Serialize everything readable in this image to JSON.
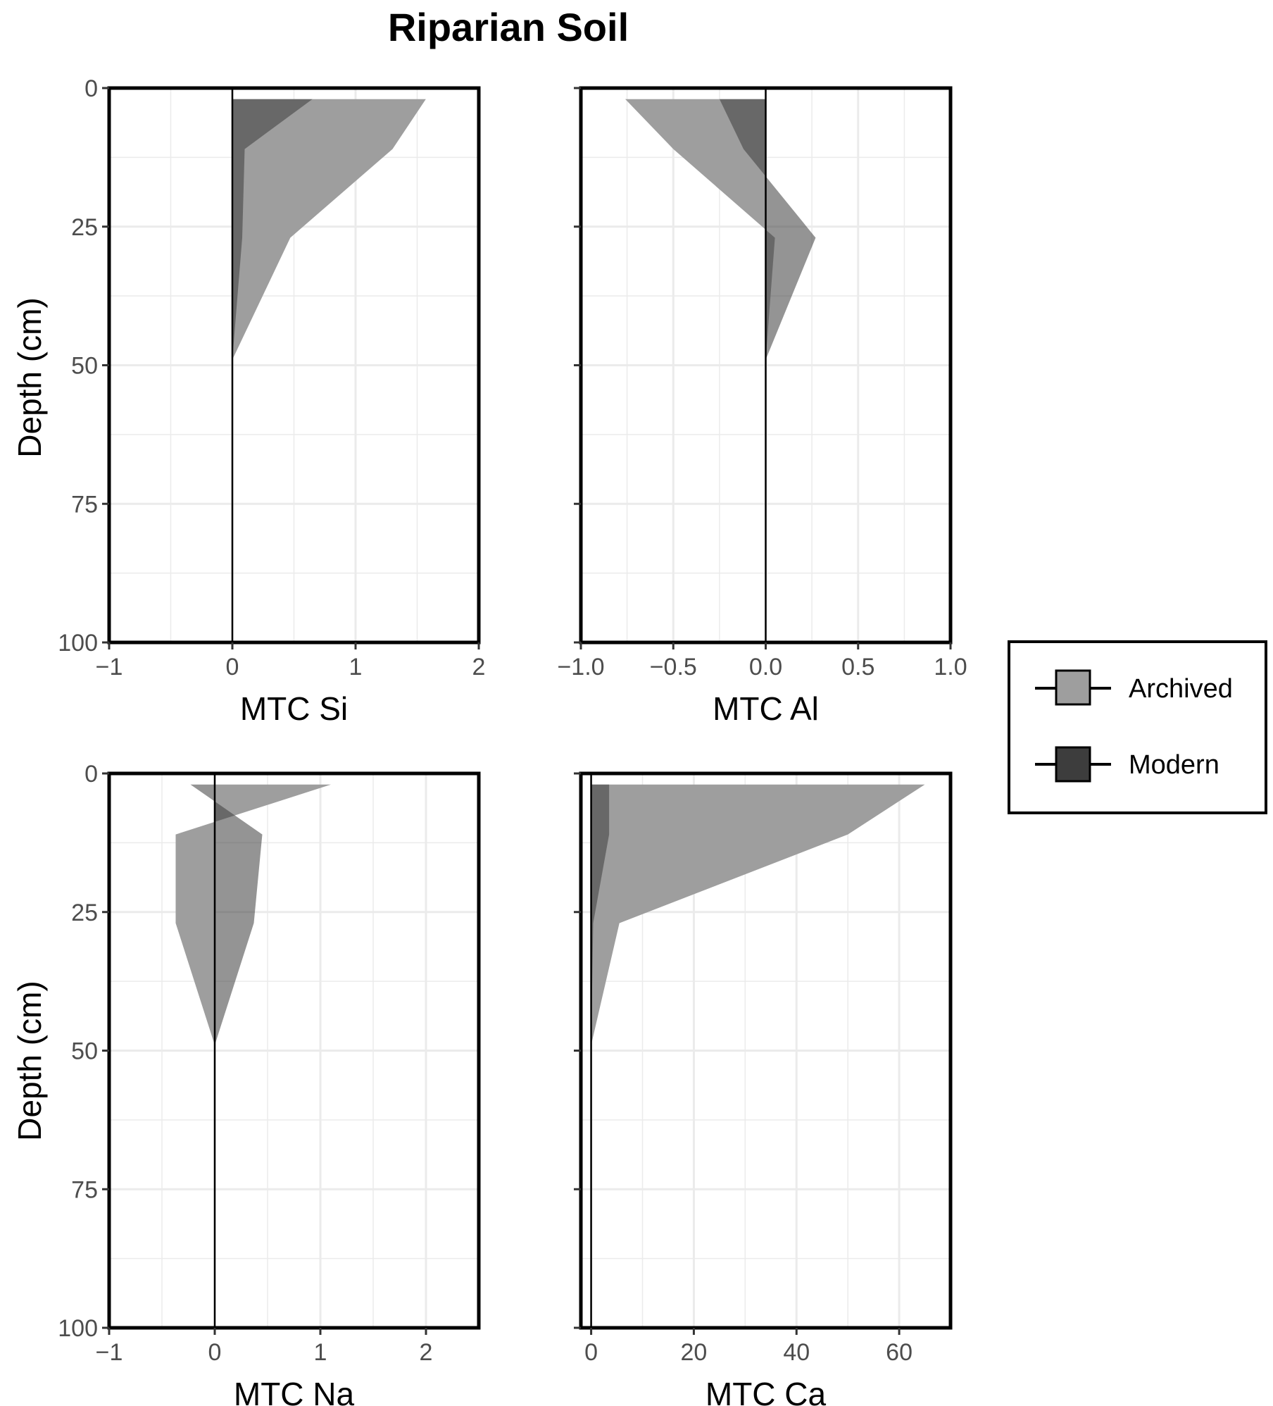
{
  "chart_data": {
    "type": "area",
    "title": "Riparian Soil",
    "legend": {
      "position": "right",
      "entries": [
        {
          "label": "Archived",
          "color": "#9e9e9e"
        },
        {
          "label": "Modern",
          "color": "#3d3d3d"
        }
      ]
    },
    "colors": {
      "archived": "#9e9e9e",
      "modern": "#3d3d3d",
      "overlap": "#777777",
      "grid": "#ebebeb",
      "frame": "#000000"
    },
    "panels": [
      {
        "id": "si",
        "xlabel": "MTC Si",
        "ylabel": "Depth (cm)",
        "xlim": [
          -1,
          2
        ],
        "ylim": [
          100,
          0
        ],
        "xticks": [
          -1,
          0,
          1,
          2
        ],
        "xtick_labels": [
          "−1",
          "0",
          "1",
          "2"
        ],
        "yticks": [
          0,
          25,
          50,
          75,
          100
        ],
        "ytick_labels": [
          "0",
          "25",
          "50",
          "75",
          "100"
        ],
        "depths": [
          2,
          11,
          27,
          49,
          100
        ],
        "series": [
          {
            "name": "Archived",
            "values": [
              1.57,
              1.3,
              0.47,
              0.0,
              0.0
            ]
          },
          {
            "name": "Modern",
            "values": [
              0.65,
              0.1,
              0.08,
              0.0,
              0.0
            ]
          }
        ]
      },
      {
        "id": "al",
        "xlabel": "MTC Al",
        "ylabel": "",
        "xlim": [
          -1,
          1
        ],
        "ylim": [
          100,
          0
        ],
        "xticks": [
          -1.0,
          -0.5,
          0.0,
          0.5,
          1.0
        ],
        "xtick_labels": [
          "−1.0",
          "−0.5",
          "0.0",
          "0.5",
          "1.0"
        ],
        "yticks": [
          0,
          25,
          50,
          75,
          100
        ],
        "ytick_labels": [],
        "depths": [
          2,
          11,
          27,
          49,
          100
        ],
        "series": [
          {
            "name": "Archived",
            "values": [
              -0.76,
              -0.5,
              0.05,
              0.0,
              0.0
            ]
          },
          {
            "name": "Modern",
            "values": [
              -0.25,
              -0.12,
              0.27,
              0.0,
              0.0
            ]
          }
        ]
      },
      {
        "id": "na",
        "xlabel": "MTC Na",
        "ylabel": "Depth (cm)",
        "xlim": [
          -1,
          2.5
        ],
        "ylim": [
          100,
          0
        ],
        "xticks": [
          -1,
          0,
          1,
          2
        ],
        "xtick_labels": [
          "−1",
          "0",
          "1",
          "2"
        ],
        "yticks": [
          0,
          25,
          50,
          75,
          100
        ],
        "ytick_labels": [
          "0",
          "25",
          "50",
          "75",
          "100"
        ],
        "depths": [
          2,
          11,
          27,
          49,
          100
        ],
        "series": [
          {
            "name": "Archived",
            "values": [
              1.1,
              -0.37,
              -0.37,
              0.0,
              0.0
            ]
          },
          {
            "name": "Modern",
            "values": [
              -0.23,
              0.45,
              0.37,
              0.0,
              0.0
            ]
          }
        ]
      },
      {
        "id": "ca",
        "xlabel": "MTC Ca",
        "ylabel": "",
        "xlim": [
          -2,
          70
        ],
        "ylim": [
          100,
          0
        ],
        "xticks": [
          0,
          20,
          40,
          60
        ],
        "xtick_labels": [
          "0",
          "20",
          "40",
          "60"
        ],
        "yticks": [
          0,
          25,
          50,
          75,
          100
        ],
        "ytick_labels": [],
        "depths": [
          2,
          11,
          27,
          49,
          100
        ],
        "series": [
          {
            "name": "Archived",
            "values": [
              65,
              50,
              5.5,
              0.0,
              0.0
            ]
          },
          {
            "name": "Modern",
            "values": [
              3.5,
              3.5,
              0.4,
              0.0,
              0.0
            ]
          }
        ]
      }
    ]
  }
}
